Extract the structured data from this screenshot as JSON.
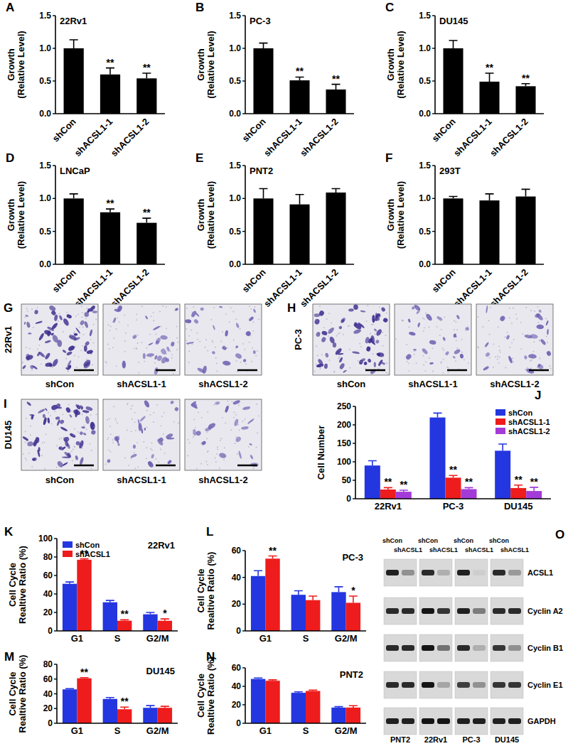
{
  "chart_data": [
    {
      "type": "bar",
      "panel": "A",
      "annotation": "22Rv1",
      "ylabel": "Growth\n(Relative Level)",
      "categories": [
        "shCon",
        "shACSL1-1",
        "shACSL1-2"
      ],
      "values": [
        1.0,
        0.6,
        0.54
      ],
      "errors": [
        0.13,
        0.1,
        0.08
      ],
      "significance": [
        null,
        "**",
        "**"
      ],
      "color": "#000000",
      "ylim": [
        0,
        1.5
      ],
      "yticks": [
        {
          "value": 0,
          "label": "0.0"
        },
        {
          "value": 0.5,
          "label": "0.5"
        },
        {
          "value": 1.0,
          "label": "1.0"
        },
        {
          "value": 1.5,
          "label": "1.5"
        }
      ]
    },
    {
      "type": "bar",
      "panel": "B",
      "annotation": "PC-3",
      "ylabel": "Growth\n(Relative Level)",
      "categories": [
        "shCon",
        "shACSL1-1",
        "shACSL1-2"
      ],
      "values": [
        1.0,
        0.51,
        0.37
      ],
      "errors": [
        0.08,
        0.05,
        0.08
      ],
      "significance": [
        null,
        "**",
        "**"
      ],
      "color": "#000000",
      "ylim": [
        0,
        1.5
      ],
      "yticks": [
        {
          "value": 0,
          "label": "0.0"
        },
        {
          "value": 0.5,
          "label": "0.5"
        },
        {
          "value": 1.0,
          "label": "1.0"
        },
        {
          "value": 1.5,
          "label": "1.5"
        }
      ]
    },
    {
      "type": "bar",
      "panel": "C",
      "annotation": "DU145",
      "ylabel": "Growth\n(Relative Level)",
      "categories": [
        "shCon",
        "shACSL1-1",
        "shACSL1-2"
      ],
      "values": [
        1.0,
        0.49,
        0.42
      ],
      "errors": [
        0.12,
        0.13,
        0.04
      ],
      "significance": [
        null,
        "**",
        "**"
      ],
      "color": "#000000",
      "ylim": [
        0,
        1.5
      ],
      "yticks": [
        {
          "value": 0,
          "label": "0.0"
        },
        {
          "value": 0.5,
          "label": "0.5"
        },
        {
          "value": 1.0,
          "label": "1.0"
        },
        {
          "value": 1.5,
          "label": "1.5"
        }
      ]
    },
    {
      "type": "bar",
      "panel": "D",
      "annotation": "LNCaP",
      "ylabel": "Growth\n(Relative Level)",
      "categories": [
        "shCon",
        "shACSL1-1",
        "shACSL1-2"
      ],
      "values": [
        1.0,
        0.79,
        0.63
      ],
      "errors": [
        0.07,
        0.05,
        0.07
      ],
      "significance": [
        null,
        "**",
        "**"
      ],
      "color": "#000000",
      "ylim": [
        0,
        1.5
      ],
      "yticks": [
        {
          "value": 0,
          "label": "0.0"
        },
        {
          "value": 0.5,
          "label": "0.5"
        },
        {
          "value": 1.0,
          "label": "1.0"
        },
        {
          "value": 1.5,
          "label": "1.5"
        }
      ]
    },
    {
      "type": "bar",
      "panel": "E",
      "annotation": "PNT2",
      "ylabel": "Growth\n(Relative Level)",
      "categories": [
        "shCon",
        "shACSL1-1",
        "shACSL1-2"
      ],
      "values": [
        1.0,
        0.91,
        1.09
      ],
      "errors": [
        0.15,
        0.15,
        0.06
      ],
      "color": "#000000",
      "ylim": [
        0,
        1.5
      ],
      "yticks": [
        {
          "value": 0,
          "label": "0.0"
        },
        {
          "value": 0.5,
          "label": "0.5"
        },
        {
          "value": 1.0,
          "label": "1.0"
        },
        {
          "value": 1.5,
          "label": "1.5"
        }
      ]
    },
    {
      "type": "bar",
      "panel": "F",
      "annotation": "293T",
      "ylabel": "Growth\n(Relative Level)",
      "categories": [
        "shCon",
        "shACSL1-1",
        "shACSL1-2"
      ],
      "values": [
        1.0,
        0.97,
        1.03
      ],
      "errors": [
        0.03,
        0.1,
        0.11
      ],
      "color": "#000000",
      "ylim": [
        0,
        1.5
      ],
      "yticks": [
        {
          "value": 0,
          "label": "0.0"
        },
        {
          "value": 0.5,
          "label": "0.5"
        },
        {
          "value": 1.0,
          "label": "1.0"
        },
        {
          "value": 1.5,
          "label": "1.5"
        }
      ]
    },
    {
      "type": "bar",
      "panel": "J",
      "ylabel": "Cell Number",
      "categories": [
        "22Rv1",
        "PC-3",
        "DU145"
      ],
      "legend": "upper right",
      "ylim": [
        0,
        250
      ],
      "yticks": [
        0,
        50,
        100,
        150,
        200,
        250
      ],
      "series": [
        {
          "name": "shCon",
          "color": "#2436e0",
          "values": [
            90,
            220,
            130
          ],
          "errors": [
            13,
            12,
            18
          ]
        },
        {
          "name": "shACSL1-1",
          "color": "#ee1c1c",
          "values": [
            25,
            57,
            29
          ],
          "errors": [
            5,
            6,
            8
          ],
          "significance": [
            "**",
            "**",
            "**"
          ]
        },
        {
          "name": "shACSL1-2",
          "color": "#a33bd8",
          "values": [
            19,
            26,
            21
          ],
          "errors": [
            4,
            4,
            10
          ],
          "significance": [
            "**",
            "**",
            "**"
          ]
        }
      ]
    },
    {
      "type": "bar",
      "panel": "K",
      "annotation": "22Rv1",
      "ylabel": "Cell Cycle\nRealtive Ratio (%)",
      "categories": [
        "G1",
        "S",
        "G2/M"
      ],
      "legend": "upper left",
      "ylim": [
        0,
        100
      ],
      "yticks": [
        0,
        20,
        40,
        60,
        80,
        100
      ],
      "series": [
        {
          "name": "shCon",
          "color": "#2436e0",
          "values": [
            51,
            31,
            18
          ],
          "errors": [
            2,
            2,
            2
          ]
        },
        {
          "name": "shACSL1",
          "color": "#ee1c1c",
          "values": [
            77,
            11,
            11
          ],
          "errors": [
            1,
            1,
            2
          ],
          "significance": [
            "**",
            "**",
            "*"
          ]
        }
      ]
    },
    {
      "type": "bar",
      "panel": "L",
      "annotation": "PC-3",
      "ylabel": "Cell Cycle\nRealtive Ratio (%)",
      "categories": [
        "G1",
        "S",
        "G2/M"
      ],
      "ylim": [
        0,
        60
      ],
      "yticks": [
        0,
        20,
        40,
        60
      ],
      "series": [
        {
          "name": "shCon",
          "color": "#2436e0",
          "values": [
            41,
            27,
            29
          ],
          "errors": [
            4,
            3,
            4
          ]
        },
        {
          "name": "shACSL1",
          "color": "#ee1c1c",
          "values": [
            54,
            23,
            21
          ],
          "errors": [
            2,
            3,
            5
          ],
          "significance": [
            "**",
            null,
            "*"
          ]
        }
      ]
    },
    {
      "type": "bar",
      "panel": "M",
      "annotation": "DU145",
      "ylabel": "Cell Cycle\nRealtive Ratio (%)",
      "categories": [
        "G1",
        "S",
        "G2/M"
      ],
      "ylim": [
        0,
        80
      ],
      "yticks": [
        0,
        20,
        40,
        60,
        80
      ],
      "series": [
        {
          "name": "shCon",
          "color": "#2436e0",
          "values": [
            46,
            33,
            21
          ],
          "errors": [
            1,
            2,
            3
          ]
        },
        {
          "name": "shACSL1",
          "color": "#ee1c1c",
          "values": [
            61,
            19,
            21
          ],
          "errors": [
            1,
            3,
            2
          ],
          "significance": [
            "**",
            "**",
            null
          ]
        }
      ]
    },
    {
      "type": "bar",
      "panel": "N",
      "annotation": "PNT2",
      "ylabel": "Cell Cycle\nRealtive Ratio (%)",
      "categories": [
        "G1",
        "S",
        "G2/M"
      ],
      "ylim": [
        0,
        60
      ],
      "yticks": [
        0,
        20,
        40,
        60
      ],
      "series": [
        {
          "name": "shCon",
          "color": "#2436e0",
          "values": [
            48,
            33,
            17
          ],
          "errors": [
            1,
            1,
            1
          ]
        },
        {
          "name": "shACSL1",
          "color": "#ee1c1c",
          "values": [
            46,
            35,
            17
          ],
          "errors": [
            1,
            1,
            2
          ]
        }
      ]
    }
  ],
  "micrographs": [
    {
      "panel": "G",
      "cell_line": "22Rv1",
      "labels": [
        "shCon",
        "shACSL1-1",
        "shACSL1-2"
      ]
    },
    {
      "panel": "H",
      "cell_line": "PC-3",
      "labels": [
        "shCon",
        "shACSL1-1",
        "shACSL1-2"
      ]
    },
    {
      "panel": "I",
      "cell_line": "DU145",
      "labels": [
        "shCon",
        "shACSL1-1",
        "shACSL1-2"
      ]
    }
  ],
  "western_blot": {
    "panel": "O",
    "cell_lines": [
      "PNT2",
      "22Rv1",
      "PC-3",
      "DU145"
    ],
    "lane_labels": [
      "shCon",
      "shACSL1"
    ],
    "proteins": [
      "ACSL1",
      "Cyclin A2",
      "Cyclin B1",
      "Cyclin E1",
      "GAPDH"
    ],
    "intensity": [
      [
        0.9,
        0.35,
        0.85,
        0.2,
        0.9,
        0.05,
        0.85,
        0.3
      ],
      [
        0.85,
        0.85,
        0.95,
        0.8,
        0.9,
        0.45,
        0.85,
        0.85
      ],
      [
        0.85,
        0.85,
        0.95,
        0.5,
        0.85,
        0.2,
        0.8,
        0.35
      ],
      [
        0.85,
        0.85,
        0.95,
        0.25,
        0.75,
        0.35,
        0.8,
        0.8
      ],
      [
        0.9,
        0.9,
        0.95,
        0.95,
        0.9,
        0.9,
        0.9,
        0.9
      ]
    ]
  }
}
